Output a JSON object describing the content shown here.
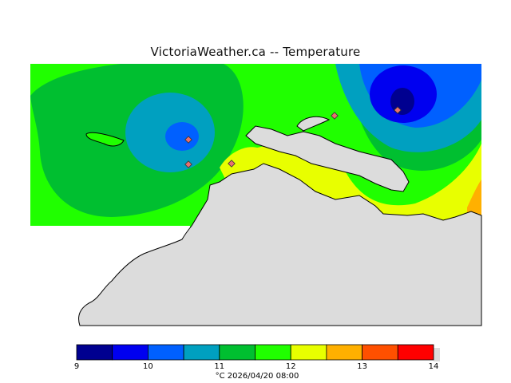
{
  "header": {
    "title": "VictoriaWeather.ca -- Temperature"
  },
  "legend": {
    "unit": "°C",
    "timestamp": "2026/04/20 08:00",
    "ticks": [
      "9",
      "10",
      "11",
      "12",
      "13",
      "14"
    ],
    "bins": [
      {
        "from": 9.0,
        "to": 9.5,
        "color": "#000090"
      },
      {
        "from": 9.5,
        "to": 10.0,
        "color": "#0000f0"
      },
      {
        "from": 10.0,
        "to": 10.5,
        "color": "#0060ff"
      },
      {
        "from": 10.5,
        "to": 11.0,
        "color": "#00a0c0"
      },
      {
        "from": 11.0,
        "to": 11.5,
        "color": "#00bf30"
      },
      {
        "from": 11.5,
        "to": 12.0,
        "color": "#20ff00"
      },
      {
        "from": 12.0,
        "to": 12.5,
        "color": "#e8ff00"
      },
      {
        "from": 12.5,
        "to": 13.0,
        "color": "#ffb000"
      },
      {
        "from": 13.0,
        "to": 13.5,
        "color": "#ff5000"
      },
      {
        "from": 13.5,
        "to": 14.0,
        "color": "#ff0000"
      }
    ]
  },
  "colors": {
    "land": "#dcdcdc",
    "coast": "#000000",
    "station_marker": "#e87070"
  },
  "stations": {
    "count": 5,
    "icon": "station-diamond-icon"
  }
}
